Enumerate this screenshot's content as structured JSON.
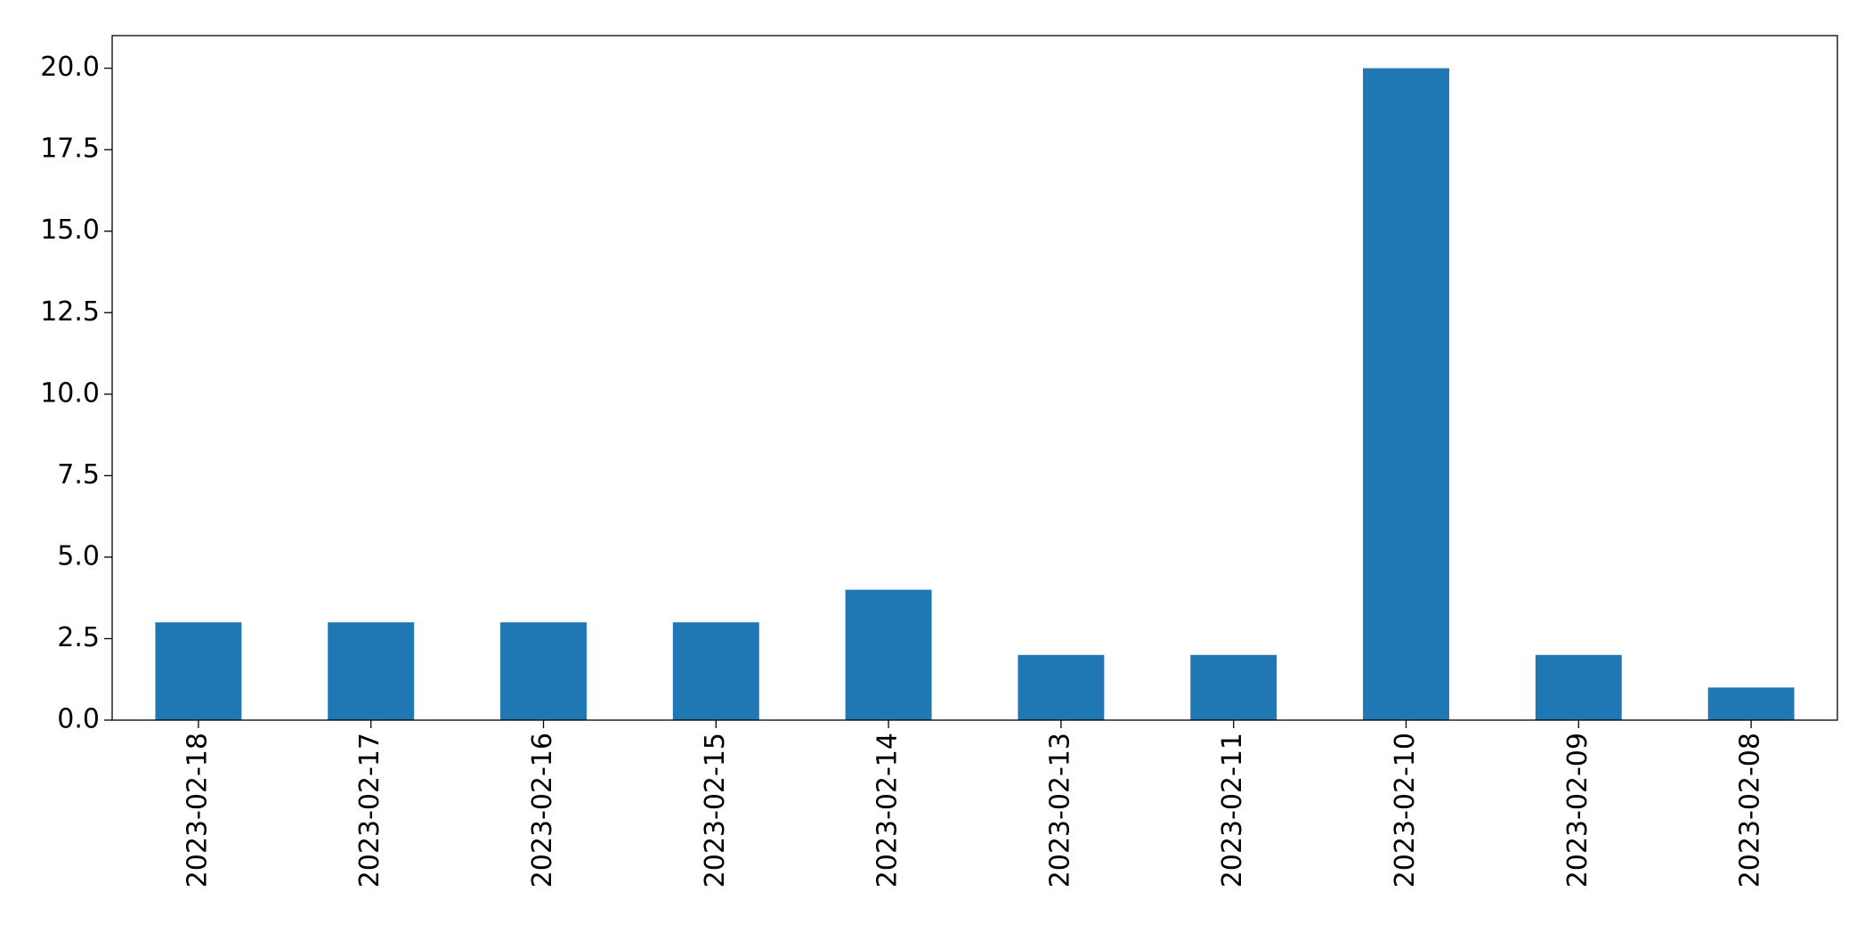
{
  "chart_data": {
    "type": "bar",
    "categories": [
      "2023-02-18",
      "2023-02-17",
      "2023-02-16",
      "2023-02-15",
      "2023-02-14",
      "2023-02-13",
      "2023-02-11",
      "2023-02-10",
      "2023-02-09",
      "2023-02-08"
    ],
    "values": [
      3,
      3,
      3,
      3,
      4,
      2,
      2,
      20,
      2,
      1
    ],
    "color": "#1f77b4",
    "ylim": [
      0,
      21
    ],
    "yticks": [
      {
        "value": 0,
        "label": "0.0"
      },
      2.5,
      {
        "value": 5,
        "label": "5.0"
      },
      7.5,
      {
        "value": 10,
        "label": "10.0"
      },
      12.5,
      {
        "value": 15,
        "label": "15.0"
      },
      17.5,
      {
        "value": 20,
        "label": "20.0"
      }
    ],
    "grid": false
  }
}
